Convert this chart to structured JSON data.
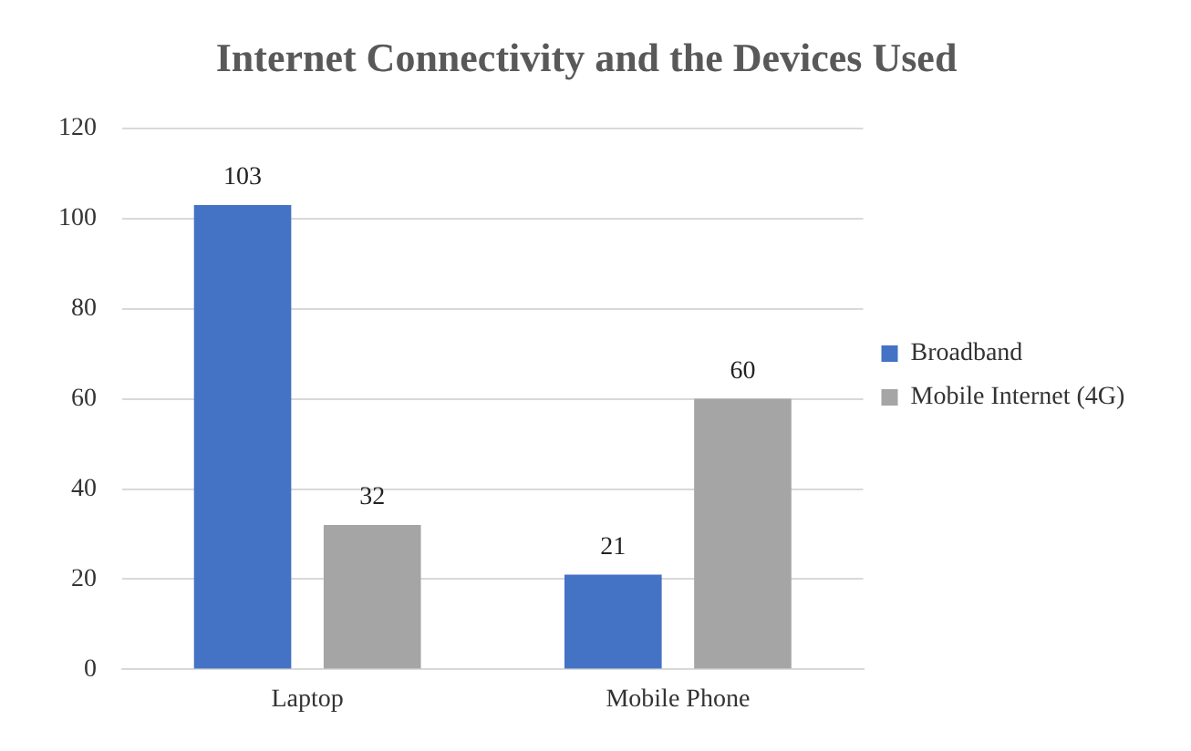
{
  "chart_data": {
    "type": "bar",
    "title": "Internet Connectivity and the Devices Used",
    "categories": [
      "Laptop",
      "Mobile Phone"
    ],
    "series": [
      {
        "name": "Broadband",
        "color": "#4472c4",
        "values": [
          103,
          21
        ]
      },
      {
        "name": "Mobile Internet (4G)",
        "color": "#a5a5a5",
        "values": [
          32,
          60
        ]
      }
    ],
    "ylim": [
      0,
      120
    ],
    "yticks": [
      0,
      20,
      40,
      60,
      80,
      100,
      120
    ],
    "grid": "y",
    "legend": "right",
    "data_labels": true
  }
}
